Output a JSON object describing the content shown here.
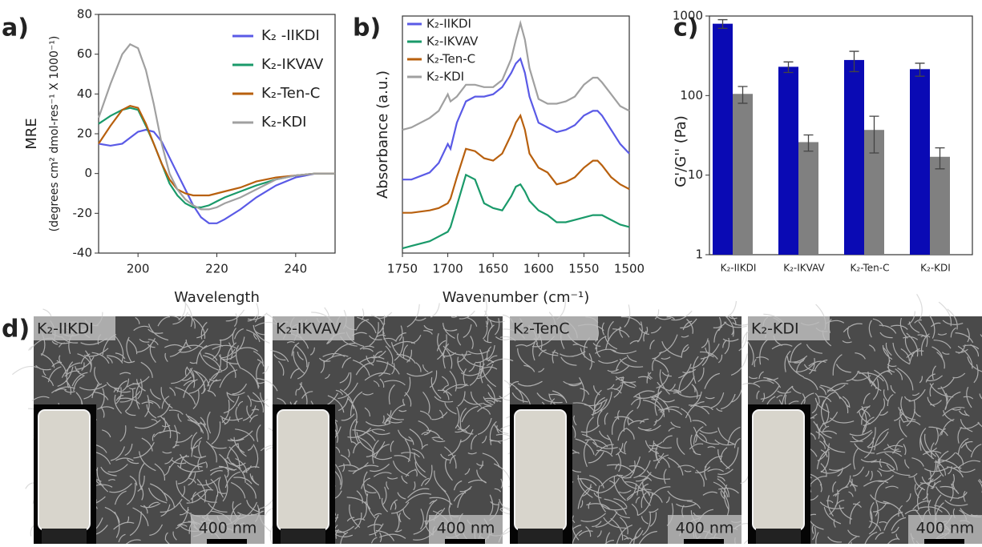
{
  "chart_data": [
    {
      "type": "line",
      "panel_label": "a)",
      "xlabel": "Wavelength",
      "ylabel": [
        "MRE",
        "(degrees cm² dmol-res⁻¹ X 1000⁻¹)"
      ],
      "xlim": [
        190,
        250
      ],
      "xticks": [
        200,
        220,
        240
      ],
      "ylim": [
        -40,
        80
      ],
      "yticks": [
        -40,
        -20,
        0,
        20,
        40,
        60,
        80
      ],
      "legend": "upper right",
      "x": [
        190,
        193,
        196,
        198,
        200,
        202,
        204,
        206,
        208,
        210,
        212,
        214,
        216,
        218,
        220,
        222,
        226,
        230,
        235,
        240,
        245,
        250
      ],
      "series": [
        {
          "name": "K₂ -IIKDI",
          "color": "#5a5ae6",
          "values": [
            15,
            14,
            15,
            18,
            21,
            22,
            21,
            16,
            8,
            0,
            -8,
            -16,
            -22,
            -25,
            -25,
            -23,
            -18,
            -12,
            -6,
            -2,
            0,
            0
          ]
        },
        {
          "name": "K₂-IKVAV",
          "color": "#1a9a6a",
          "values": [
            25,
            29,
            32,
            33,
            32,
            24,
            15,
            5,
            -5,
            -11,
            -15,
            -17,
            -17,
            -16,
            -14,
            -12,
            -9,
            -6,
            -3,
            -1,
            0,
            0
          ]
        },
        {
          "name": "K₂-Ten-C",
          "color": "#b8600e",
          "values": [
            15,
            24,
            32,
            34,
            33,
            25,
            15,
            5,
            -3,
            -8,
            -10,
            -11,
            -11,
            -11,
            -10,
            -9,
            -7,
            -4,
            -2,
            -1,
            0,
            0
          ]
        },
        {
          "name": "K₂-KDI",
          "color": "#a0a0a0",
          "values": [
            28,
            45,
            60,
            65,
            63,
            52,
            35,
            15,
            0,
            -8,
            -13,
            -16,
            -18,
            -18,
            -17,
            -15,
            -12,
            -8,
            -3,
            -1,
            0,
            0
          ]
        }
      ]
    },
    {
      "type": "line",
      "panel_label": "b)",
      "xlabel": "Wavenumber (cm⁻¹)",
      "ylabel": [
        "Absorbance (a.u.)"
      ],
      "xlim": [
        1750,
        1500
      ],
      "xticks": [
        1750,
        1700,
        1650,
        1600,
        1550,
        1500
      ],
      "ylim": [
        0,
        100
      ],
      "legend": "upper left",
      "x": [
        1750,
        1740,
        1720,
        1710,
        1700,
        1697,
        1690,
        1680,
        1670,
        1660,
        1650,
        1640,
        1630,
        1625,
        1620,
        1615,
        1610,
        1600,
        1590,
        1580,
        1570,
        1560,
        1550,
        1540,
        1535,
        1530,
        1520,
        1510,
        1500
      ],
      "series": [
        {
          "name": "K₂-IIKDI",
          "color": "#5a5ae6",
          "values": [
            31,
            31,
            34,
            38,
            46,
            44,
            55,
            64,
            66,
            66,
            67,
            70,
            76,
            80,
            82,
            76,
            66,
            55,
            53,
            51,
            52,
            54,
            58,
            60,
            60,
            58,
            52,
            46,
            42
          ]
        },
        {
          "name": "K₂-IKVAV",
          "color": "#1a9a6a",
          "values": [
            2,
            3,
            5,
            7,
            9,
            11,
            20,
            33,
            31,
            21,
            19,
            18,
            24,
            28,
            29,
            26,
            22,
            18,
            16,
            13,
            13,
            14,
            15,
            16,
            16,
            16,
            14,
            12,
            11
          ]
        },
        {
          "name": "K₂-Ten-C",
          "color": "#b8600e",
          "values": [
            17,
            17,
            18,
            19,
            21,
            23,
            32,
            44,
            43,
            40,
            39,
            42,
            50,
            55,
            58,
            52,
            42,
            36,
            34,
            29,
            30,
            32,
            36,
            39,
            39,
            37,
            32,
            29,
            27
          ]
        },
        {
          "name": "K₂-KDI",
          "color": "#a0a0a0",
          "values": [
            52,
            53,
            57,
            60,
            67,
            64,
            66,
            71,
            71,
            70,
            70,
            73,
            82,
            90,
            97,
            90,
            78,
            65,
            63,
            63,
            64,
            66,
            71,
            74,
            74,
            72,
            67,
            62,
            60
          ]
        }
      ]
    },
    {
      "type": "bar",
      "panel_label": "c)",
      "ylabel": [
        "G'/G'' (Pa)"
      ],
      "log_scale": true,
      "ylim": [
        1,
        1000
      ],
      "yticks": [
        1,
        10,
        100,
        1000
      ],
      "categories": [
        "K₂-IIKDI",
        "K₂-IKVAV",
        "K₂-Ten-C",
        "K₂-KDI"
      ],
      "series": [
        {
          "color": "#0a0ab4",
          "values": [
            800,
            230,
            280,
            215
          ],
          "errors": [
            100,
            35,
            80,
            40
          ]
        },
        {
          "color": "#808080",
          "values": [
            105,
            26,
            37,
            17
          ],
          "errors": [
            25,
            6,
            18,
            5
          ]
        }
      ]
    }
  ],
  "images": {
    "panel_label": "d)",
    "panels": [
      {
        "label": "K₂-IIKDI",
        "scale_bar": "400 nm"
      },
      {
        "label": "K₂-IKVAV",
        "scale_bar": "400 nm"
      },
      {
        "label": "K₂-TenC",
        "scale_bar": "400 nm"
      },
      {
        "label": "K₂-KDI",
        "scale_bar": "400 nm"
      }
    ]
  }
}
